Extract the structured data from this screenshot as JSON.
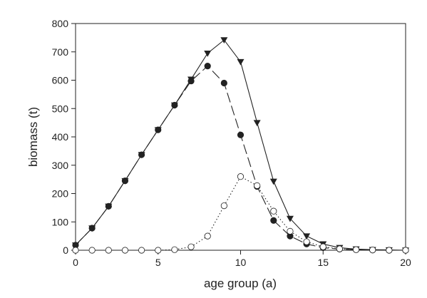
{
  "chart_data": {
    "type": "line",
    "title": "",
    "xlabel": "age group (a)",
    "ylabel": "biomass (t)",
    "xlim": [
      0,
      20
    ],
    "ylim": [
      0,
      800
    ],
    "xticks": [
      0,
      5,
      10,
      15,
      20
    ],
    "yticks": [
      0,
      100,
      200,
      300,
      400,
      500,
      600,
      700,
      800
    ],
    "grid": false,
    "legend": "none",
    "series": [
      {
        "marker": "triangle-down-filled",
        "line_style": "solid",
        "color": "#222222",
        "x": [
          0,
          1,
          2,
          3,
          4,
          5,
          6,
          7,
          8,
          9,
          10,
          11,
          12,
          13,
          14,
          15,
          16,
          17,
          18,
          19,
          20
        ],
        "values": [
          18,
          78,
          155,
          245,
          337,
          425,
          512,
          603,
          695,
          742,
          665,
          450,
          243,
          112,
          50,
          22,
          9,
          4,
          2,
          1,
          0
        ]
      },
      {
        "marker": "circle-filled",
        "line_style": "dashed",
        "color": "#222222",
        "x": [
          0,
          1,
          2,
          3,
          4,
          5,
          6,
          7,
          8,
          9,
          10,
          11,
          12,
          13,
          14,
          15,
          16,
          17,
          18,
          19,
          20
        ],
        "values": [
          18,
          78,
          155,
          245,
          337,
          425,
          512,
          597,
          650,
          590,
          407,
          225,
          105,
          50,
          22,
          9,
          4,
          2,
          1,
          0,
          0
        ]
      },
      {
        "marker": "circle-open",
        "line_style": "dotted",
        "color": "#222222",
        "x": [
          0,
          1,
          2,
          3,
          4,
          5,
          6,
          7,
          8,
          9,
          10,
          11,
          12,
          13,
          14,
          15,
          16,
          17,
          18,
          19,
          20
        ],
        "values": [
          0,
          0,
          0,
          0,
          0,
          0,
          2,
          12,
          50,
          157,
          260,
          228,
          138,
          67,
          30,
          12,
          5,
          2,
          1,
          0,
          0
        ]
      }
    ]
  }
}
